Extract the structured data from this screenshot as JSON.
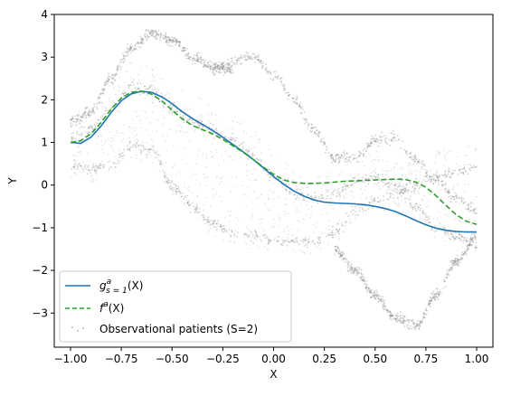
{
  "chart_data": {
    "type": "line",
    "title": "",
    "xlabel": "X",
    "ylabel": "Y",
    "xlim": [
      -1.08,
      1.08
    ],
    "ylim": [
      -3.8,
      4.0
    ],
    "grid": false,
    "legend_placement": "lower-left",
    "xticks": [
      -1.0,
      -0.75,
      -0.5,
      -0.25,
      0.0,
      0.25,
      0.5,
      0.75,
      1.0
    ],
    "xtick_labels": [
      "−1.00",
      "−0.75",
      "−0.50",
      "−0.25",
      "0.00",
      "0.25",
      "0.50",
      "0.75",
      "1.00"
    ],
    "yticks": [
      -3,
      -2,
      -1,
      0,
      1,
      2,
      3,
      4
    ],
    "ytick_labels": [
      "−3",
      "−2",
      "−1",
      "0",
      "1",
      "2",
      "3",
      "4"
    ],
    "series": [
      {
        "name": "g^a_{s=1}(X)",
        "legend_main": "g",
        "legend_sup": "a",
        "legend_sub": "s = 1",
        "legend_tail": "(X)",
        "style": "solid",
        "color": "#1f77b4",
        "x": [
          -1.0,
          -0.95,
          -0.9,
          -0.85,
          -0.8,
          -0.75,
          -0.7,
          -0.65,
          -0.6,
          -0.55,
          -0.5,
          -0.45,
          -0.4,
          -0.35,
          -0.3,
          -0.25,
          -0.2,
          -0.15,
          -0.1,
          -0.05,
          0.0,
          0.05,
          0.1,
          0.15,
          0.2,
          0.25,
          0.3,
          0.35,
          0.4,
          0.45,
          0.5,
          0.55,
          0.6,
          0.65,
          0.7,
          0.75,
          0.8,
          0.85,
          0.9,
          0.95,
          1.0
        ],
        "y": [
          1.0,
          0.98,
          1.12,
          1.38,
          1.7,
          1.98,
          2.14,
          2.2,
          2.17,
          2.07,
          1.91,
          1.72,
          1.56,
          1.42,
          1.28,
          1.12,
          0.95,
          0.78,
          0.6,
          0.4,
          0.2,
          0.02,
          -0.14,
          -0.26,
          -0.35,
          -0.4,
          -0.42,
          -0.43,
          -0.44,
          -0.46,
          -0.5,
          -0.55,
          -0.62,
          -0.72,
          -0.83,
          -0.93,
          -1.01,
          -1.06,
          -1.09,
          -1.1,
          -1.1
        ]
      },
      {
        "name": "f^a(X)",
        "legend_main": "f",
        "legend_sup": "a",
        "legend_sub": "",
        "legend_tail": "(X)",
        "style": "dashed",
        "color": "#2ca02c",
        "x": [
          -1.0,
          -0.95,
          -0.9,
          -0.85,
          -0.8,
          -0.75,
          -0.7,
          -0.65,
          -0.6,
          -0.55,
          -0.5,
          -0.45,
          -0.4,
          -0.35,
          -0.3,
          -0.25,
          -0.2,
          -0.15,
          -0.1,
          -0.05,
          0.0,
          0.05,
          0.1,
          0.15,
          0.2,
          0.25,
          0.3,
          0.35,
          0.4,
          0.45,
          0.5,
          0.55,
          0.6,
          0.65,
          0.7,
          0.75,
          0.8,
          0.85,
          0.9,
          0.95,
          1.0
        ],
        "y": [
          1.0,
          1.04,
          1.2,
          1.46,
          1.78,
          2.04,
          2.18,
          2.2,
          2.13,
          1.97,
          1.76,
          1.55,
          1.4,
          1.3,
          1.2,
          1.07,
          0.92,
          0.77,
          0.6,
          0.42,
          0.25,
          0.12,
          0.06,
          0.04,
          0.04,
          0.05,
          0.07,
          0.09,
          0.1,
          0.11,
          0.12,
          0.13,
          0.14,
          0.13,
          0.07,
          -0.05,
          -0.25,
          -0.48,
          -0.7,
          -0.85,
          -0.92
        ]
      }
    ],
    "scatter": {
      "name": "Observational patients (S=2)",
      "color": "#7f7f7f",
      "x_range": [
        -1.0,
        1.0
      ],
      "bands": [
        {
          "x": [
            -1.0,
            -0.9,
            -0.8,
            -0.7,
            -0.6,
            -0.5,
            -0.4,
            -0.3,
            -0.2
          ],
          "y": [
            1.5,
            1.7,
            2.5,
            3.2,
            3.55,
            3.4,
            3.0,
            2.8,
            2.7
          ]
        },
        {
          "x": [
            -1.0,
            -0.9,
            -0.8,
            -0.7,
            -0.6,
            -0.5,
            -0.4,
            -0.3,
            -0.2,
            -0.1,
            0.0,
            0.1,
            0.2,
            0.3,
            0.4,
            0.5,
            0.6,
            0.7,
            0.8,
            0.9,
            1.0
          ],
          "y": [
            1.1,
            1.3,
            1.8,
            2.3,
            2.2,
            1.8,
            1.5,
            1.3,
            1.05,
            0.7,
            0.2,
            -0.2,
            -0.3,
            -0.2,
            0.1,
            0.2,
            0.0,
            -0.5,
            -1.0,
            -1.2,
            -1.4
          ]
        },
        {
          "x": [
            -1.0,
            -0.9,
            -0.8,
            -0.7,
            -0.6,
            -0.5,
            -0.4,
            -0.3,
            -0.2,
            -0.1,
            0.0,
            0.1,
            0.2,
            0.3,
            0.4,
            0.5,
            0.6,
            0.7,
            0.8,
            0.9,
            1.0
          ],
          "y": [
            0.45,
            0.35,
            0.5,
            0.9,
            0.8,
            0.0,
            -0.5,
            -0.9,
            -1.1,
            -1.2,
            -1.3,
            -1.3,
            -1.35,
            -1.1,
            -0.6,
            -0.4,
            -0.2,
            0.0,
            0.2,
            0.3,
            0.4
          ]
        },
        {
          "x": [
            -0.3,
            -0.2,
            -0.1,
            0.0,
            0.1,
            0.2,
            0.3,
            0.4,
            0.5,
            0.6,
            0.7,
            0.8,
            0.9,
            1.0
          ],
          "y": [
            2.7,
            2.9,
            3.0,
            2.6,
            2.0,
            1.3,
            0.6,
            0.65,
            1.05,
            1.1,
            0.6,
            0.1,
            -0.3,
            -0.6
          ]
        },
        {
          "x": [
            0.3,
            0.4,
            0.5,
            0.6,
            0.7,
            0.8,
            0.9,
            1.0
          ],
          "y": [
            -1.5,
            -2.0,
            -2.6,
            -3.1,
            -3.3,
            -2.6,
            -1.8,
            -1.2
          ]
        }
      ]
    }
  }
}
